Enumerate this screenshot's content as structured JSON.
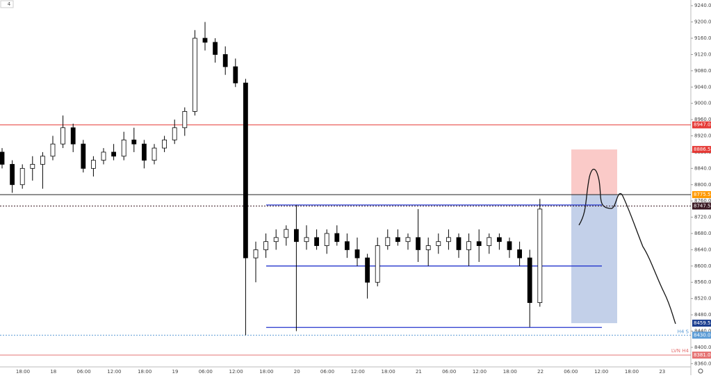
{
  "chart_data": {
    "type": "candlestick",
    "interval_badge": "4",
    "categories": [
      "18:00",
      "18",
      "06:00",
      "12:00",
      "18:00",
      "19",
      "06:00",
      "12:00",
      "18:00",
      "20",
      "06:00",
      "12:00",
      "18:00",
      "21",
      "06:00",
      "12:00",
      "18:00",
      "22",
      "06:00",
      "12:00",
      "18:00",
      "23"
    ],
    "ylim": [
      8352,
      9254
    ],
    "yticks": [
      {
        "value": 9240,
        "label": "9240.0"
      },
      {
        "value": 9200,
        "label": "9200.0"
      },
      {
        "value": 9160,
        "label": "9160.0"
      },
      {
        "value": 9120,
        "label": "9120.0"
      },
      {
        "value": 9080,
        "label": "9080.0"
      },
      {
        "value": 9040,
        "label": "9040.0"
      },
      {
        "value": 9000,
        "label": "9000.0"
      },
      {
        "value": 8960,
        "label": "8960.0"
      },
      {
        "value": 8920,
        "label": "8920.0"
      },
      {
        "value": 8880,
        "label": "8880.0"
      },
      {
        "value": 8840,
        "label": "8840.0"
      },
      {
        "value": 8800,
        "label": "8800.0"
      },
      {
        "value": 8760,
        "label": "8760.0"
      },
      {
        "value": 8720,
        "label": "8720.0"
      },
      {
        "value": 8680,
        "label": "8680.0"
      },
      {
        "value": 8640,
        "label": "8640.0"
      },
      {
        "value": 8600,
        "label": "8600.0"
      },
      {
        "value": 8560,
        "label": "8560.0"
      },
      {
        "value": 8520,
        "label": "8520.0"
      },
      {
        "value": 8480,
        "label": "8480.0"
      },
      {
        "value": 8440,
        "label": "8440.0"
      },
      {
        "value": 8400,
        "label": "8400.0"
      },
      {
        "value": 8360,
        "label": "8360.0"
      }
    ],
    "open": [
      8880,
      8850,
      8800,
      8840,
      8850,
      8870,
      8900,
      8940,
      8900,
      8840,
      8860,
      8880,
      8870,
      8910,
      8900,
      8860,
      8890,
      8910,
      8940,
      8980,
      9160,
      9150,
      9120,
      9090,
      9050,
      8620,
      8640,
      8660,
      8670,
      8690,
      8660,
      8670,
      8650,
      8680,
      8660,
      8640,
      8620,
      8560,
      8650,
      8670,
      8660,
      8670,
      8640,
      8650,
      8660,
      8670,
      8640,
      8660,
      8650,
      8670,
      8660,
      8640,
      8620,
      8510
    ],
    "high": [
      8890,
      8860,
      8850,
      8870,
      8880,
      8920,
      8970,
      8950,
      8910,
      8870,
      8890,
      8900,
      8930,
      8940,
      8910,
      8900,
      8920,
      8960,
      8990,
      9180,
      9200,
      9160,
      9140,
      9110,
      9060,
      8660,
      8680,
      8690,
      8700,
      8750,
      8700,
      8690,
      8690,
      8700,
      8680,
      8670,
      8630,
      8670,
      8690,
      8690,
      8680,
      8740,
      8670,
      8680,
      8690,
      8680,
      8680,
      8690,
      8680,
      8680,
      8670,
      8660,
      8640,
      8765
    ],
    "low": [
      8840,
      8780,
      8790,
      8810,
      8790,
      8860,
      8890,
      8880,
      8830,
      8820,
      8850,
      8860,
      8860,
      8880,
      8840,
      8850,
      8880,
      8900,
      8920,
      8970,
      9130,
      9100,
      9070,
      9040,
      8430,
      8560,
      8620,
      8640,
      8650,
      8440,
      8640,
      8640,
      8630,
      8650,
      8620,
      8600,
      8520,
      8550,
      8640,
      8650,
      8640,
      8610,
      8600,
      8630,
      8640,
      8620,
      8600,
      8610,
      8630,
      8640,
      8620,
      8600,
      8450,
      8500
    ],
    "close": [
      8850,
      8800,
      8840,
      8850,
      8870,
      8900,
      8940,
      8900,
      8840,
      8860,
      8880,
      8870,
      8910,
      8900,
      8860,
      8890,
      8910,
      8940,
      8980,
      9160,
      9150,
      9120,
      9090,
      9050,
      8620,
      8640,
      8660,
      8670,
      8690,
      8660,
      8670,
      8650,
      8680,
      8660,
      8640,
      8620,
      8560,
      8650,
      8670,
      8660,
      8670,
      8640,
      8650,
      8660,
      8670,
      8640,
      8660,
      8650,
      8670,
      8660,
      8640,
      8620,
      8510,
      8740
    ],
    "levels": [
      {
        "value": 8947,
        "label": "8947.0",
        "color": "#e53935"
      },
      {
        "value": 8886.5,
        "label": "8886.5",
        "color": "#e53935"
      },
      {
        "value": 8775.5,
        "label": "8775.5",
        "color": "#ff9800"
      },
      {
        "value": 8747.5,
        "label": "8747.5",
        "color": "#3b1a24"
      },
      {
        "value": 8459.5,
        "label": "8459.5",
        "color": "#1a3d8f"
      },
      {
        "value": 8430,
        "label": "8430.0",
        "color": "#5b9bd5"
      },
      {
        "value": 8381,
        "label": "8381.0",
        "color": "#e57373"
      }
    ],
    "range_lines": [
      8750,
      8600,
      8449
    ],
    "annotations": [
      "H4 S",
      "LVN H4"
    ]
  }
}
